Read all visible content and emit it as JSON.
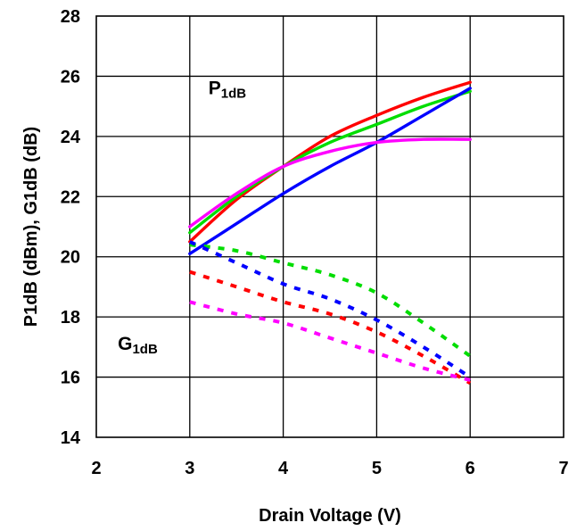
{
  "chart_data": {
    "type": "line",
    "title": "",
    "xlabel": "Drain Voltage (V)",
    "ylabel": "P1dB (dBm), G1dB (dB)",
    "xlim": [
      2,
      7
    ],
    "ylim": [
      14,
      28
    ],
    "x_ticks": [
      "2",
      "3",
      "4",
      "5",
      "6",
      "7"
    ],
    "y_ticks": [
      "14",
      "16",
      "18",
      "20",
      "22",
      "24",
      "26",
      "28"
    ],
    "grid": true,
    "legend": "none",
    "annotations": [
      {
        "text": "P1dB",
        "x": 3.2,
        "y": 25.4
      },
      {
        "text": "G1dB",
        "x": 2.23,
        "y": 16.9
      }
    ],
    "series": [
      {
        "group": "P1dB",
        "color": "#ff0000",
        "style": "solid",
        "x": [
          3.0,
          3.5,
          4.0,
          4.5,
          5.0,
          5.5,
          6.0
        ],
        "y": [
          20.5,
          21.9,
          23.0,
          24.0,
          24.7,
          25.3,
          25.8
        ]
      },
      {
        "group": "P1dB",
        "color": "#00dd00",
        "style": "solid",
        "x": [
          3.0,
          3.5,
          4.0,
          4.5,
          5.0,
          5.5,
          6.0
        ],
        "y": [
          20.8,
          22.0,
          23.0,
          23.8,
          24.4,
          25.0,
          25.5
        ]
      },
      {
        "group": "P1dB",
        "color": "#0000ff",
        "style": "solid",
        "x": [
          3.0,
          3.5,
          4.0,
          4.5,
          5.0,
          5.5,
          6.0
        ],
        "y": [
          20.1,
          21.1,
          22.1,
          23.0,
          23.8,
          24.7,
          25.6
        ]
      },
      {
        "group": "P1dB",
        "color": "#ff00ff",
        "style": "solid",
        "x": [
          3.0,
          3.5,
          4.0,
          4.5,
          5.0,
          5.5,
          6.0
        ],
        "y": [
          21.0,
          22.1,
          23.0,
          23.5,
          23.8,
          23.9,
          23.9
        ]
      },
      {
        "group": "G1dB",
        "color": "#00dd00",
        "style": "dashed",
        "x": [
          3.0,
          3.5,
          4.0,
          4.5,
          5.0,
          5.5,
          6.0
        ],
        "y": [
          20.4,
          20.2,
          19.8,
          19.4,
          18.8,
          17.8,
          16.7
        ]
      },
      {
        "group": "G1dB",
        "color": "#0000ff",
        "style": "dashed",
        "x": [
          3.0,
          3.5,
          4.0,
          4.5,
          5.0,
          5.5,
          6.0
        ],
        "y": [
          20.5,
          19.8,
          19.1,
          18.6,
          17.9,
          17.0,
          16.0
        ]
      },
      {
        "group": "G1dB",
        "color": "#ff0000",
        "style": "dashed",
        "x": [
          3.0,
          3.5,
          4.0,
          4.5,
          5.0,
          5.5,
          6.0
        ],
        "y": [
          19.5,
          19.0,
          18.5,
          18.1,
          17.5,
          16.7,
          15.8
        ]
      },
      {
        "group": "G1dB",
        "color": "#ff00ff",
        "style": "dashed",
        "x": [
          3.0,
          3.5,
          4.0,
          4.5,
          5.0,
          5.5,
          6.0
        ],
        "y": [
          18.5,
          18.1,
          17.8,
          17.3,
          16.8,
          16.3,
          15.9
        ]
      }
    ]
  }
}
